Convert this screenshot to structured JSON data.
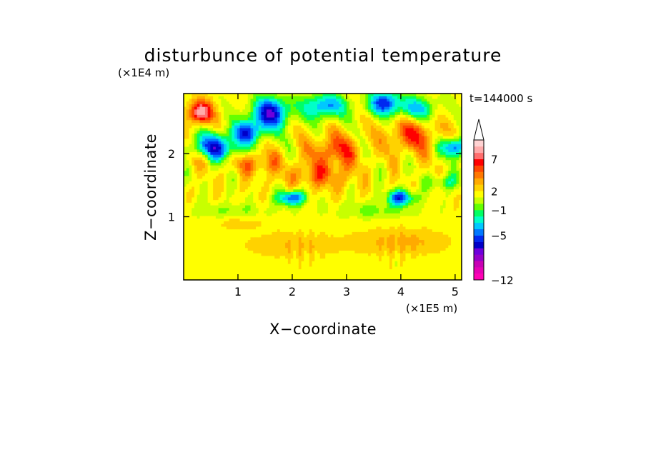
{
  "chart_data": {
    "type": "heatmap",
    "title": "disturbunce of potential temperature",
    "xlabel": "X−coordinate",
    "ylabel": "Z−coordinate",
    "x_unit": "(×1E5 m)",
    "y_unit": "(×1E4 m)",
    "time_label": "t=144000 s",
    "xlim": [
      0,
      5.12
    ],
    "ylim": [
      0,
      2.95
    ],
    "x_ticks": [
      1,
      2,
      3,
      4,
      5
    ],
    "y_ticks": [
      1,
      2
    ],
    "grid": false,
    "colorbar": {
      "levels": [
        -12,
        -11,
        -10,
        -9,
        -8,
        -7,
        -6,
        -5,
        -4,
        -3,
        -2,
        -1,
        0,
        1,
        2,
        3,
        4,
        5,
        6,
        7,
        8,
        9
      ],
      "colors": [
        "#ff00b4",
        "#e600b4",
        "#c800b4",
        "#9600c8",
        "#6e00dc",
        "#0000c8",
        "#0028f0",
        "#0078ff",
        "#00c8ff",
        "#00ffc8",
        "#00ff64",
        "#64ff00",
        "#c8ff00",
        "#ffff00",
        "#ffd200",
        "#ffaa00",
        "#ff7800",
        "#ff4600",
        "#ff0000",
        "#ff6e6e",
        "#ffaaaa",
        "#ffd2d2"
      ],
      "tick_values": [
        -12,
        -5,
        -1,
        2,
        7
      ],
      "tick_labels": [
        "−12",
        "−5",
        "−1",
        "2",
        "7"
      ],
      "extend": "max"
    },
    "field": {
      "background": 1.5,
      "features": [
        {
          "x": 0.3,
          "z": 2.65,
          "sx": 0.22,
          "sz": 0.18,
          "amp": 7.5
        },
        {
          "x": 0.6,
          "z": 2.1,
          "sx": 0.45,
          "sz": 0.22,
          "amp": -7
        },
        {
          "x": 1.2,
          "z": 2.35,
          "sx": 0.3,
          "sz": 0.18,
          "amp": -6
        },
        {
          "x": 1.6,
          "z": 2.65,
          "sx": 0.35,
          "sz": 0.25,
          "amp": -8
        },
        {
          "x": 2.6,
          "z": 2.75,
          "sx": 0.4,
          "sz": 0.2,
          "amp": -6
        },
        {
          "x": 3.7,
          "z": 2.8,
          "sx": 0.3,
          "sz": 0.2,
          "amp": -7
        },
        {
          "x": 4.3,
          "z": 2.7,
          "sx": 0.35,
          "sz": 0.2,
          "amp": -5
        },
        {
          "x": 5.0,
          "z": 2.1,
          "sx": 0.25,
          "sz": 0.15,
          "amp": -7
        },
        {
          "x": 2.8,
          "z": 2.05,
          "sx": 0.45,
          "sz": 0.25,
          "amp": 4
        },
        {
          "x": 4.2,
          "z": 2.3,
          "sx": 0.45,
          "sz": 0.3,
          "amp": 4
        },
        {
          "x": 2.0,
          "z": 1.3,
          "sx": 0.25,
          "sz": 0.12,
          "amp": -7
        },
        {
          "x": 4.0,
          "z": 1.3,
          "sx": 0.25,
          "sz": 0.12,
          "amp": -7
        },
        {
          "x": 2.5,
          "z": 1.65,
          "sx": 0.6,
          "sz": 0.22,
          "amp": 3
        },
        {
          "x": 3.5,
          "z": 1.1,
          "sx": 0.7,
          "sz": 0.12,
          "amp": -2
        },
        {
          "x": 0.8,
          "z": 1.1,
          "sx": 0.8,
          "sz": 0.12,
          "amp": -1.5
        },
        {
          "x": 2.0,
          "z": 0.55,
          "sx": 0.8,
          "sz": 0.2,
          "amp": 1.5
        },
        {
          "x": 4.0,
          "z": 0.6,
          "sx": 0.8,
          "sz": 0.2,
          "amp": 2
        },
        {
          "x": 1.0,
          "z": 0.9,
          "sx": 0.5,
          "sz": 0.1,
          "amp": 1
        },
        {
          "x": 4.8,
          "z": 1.55,
          "sx": 0.3,
          "sz": 0.12,
          "amp": -3
        },
        {
          "x": 1.3,
          "z": 1.85,
          "sx": 0.5,
          "sz": 0.18,
          "amp": 3
        },
        {
          "x": 0.2,
          "z": 1.9,
          "sx": 0.25,
          "sz": 0.15,
          "amp": 2
        }
      ]
    }
  }
}
